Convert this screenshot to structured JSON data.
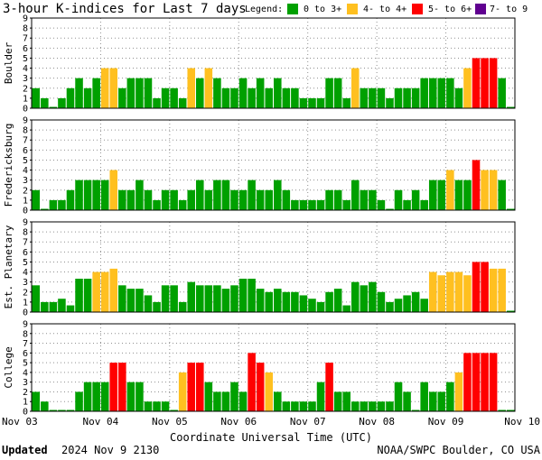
{
  "title": "3-hour K-indices for Last 7 days",
  "legend": {
    "label": "Legend:",
    "items": [
      {
        "label": "0 to 3+",
        "color": "#00a000"
      },
      {
        "label": "4- to 4+",
        "color": "#ffc020"
      },
      {
        "label": "5- to 6+",
        "color": "#ff0000"
      },
      {
        "label": "7- to 9",
        "color": "#600090"
      }
    ]
  },
  "chart_data": {
    "type": "bar",
    "xlabel": "Coordinate Universal Time (UTC)",
    "x_ticks": [
      "Nov 03",
      "Nov 04",
      "Nov 05",
      "Nov 06",
      "Nov 07",
      "Nov 08",
      "Nov 09",
      "Nov 10"
    ],
    "ylim": [
      0,
      9
    ],
    "y_ticks": [
      "0",
      "1",
      "2",
      "3",
      "4",
      "5",
      "6",
      "7",
      "8",
      "9"
    ],
    "panels": [
      {
        "name": "Boulder",
        "values": [
          2,
          1,
          0,
          1,
          2,
          3,
          2,
          3,
          4,
          4,
          2,
          3,
          3,
          3,
          1,
          2,
          2,
          1,
          4,
          3,
          4,
          3,
          2,
          2,
          3,
          2,
          3,
          2,
          3,
          2,
          2,
          1,
          1,
          1,
          3,
          3,
          1,
          4,
          2,
          2,
          2,
          1,
          2,
          2,
          2,
          3,
          3,
          3,
          3,
          2,
          4,
          5,
          5,
          5,
          3,
          0
        ]
      },
      {
        "name": "Fredericksburg",
        "values": [
          2,
          0,
          1,
          1,
          2,
          3,
          3,
          3,
          3,
          4,
          2,
          2,
          3,
          2,
          1,
          2,
          2,
          1,
          2,
          3,
          2,
          3,
          3,
          2,
          2,
          3,
          2,
          2,
          3,
          2,
          1,
          1,
          1,
          1,
          2,
          2,
          1,
          3,
          2,
          2,
          1,
          0,
          2,
          1,
          2,
          1,
          3,
          3,
          4,
          3,
          3,
          5,
          4,
          4,
          3,
          0
        ]
      },
      {
        "name": "Est. Planetary",
        "values": [
          2.67,
          1,
          1,
          1.33,
          0.67,
          3.33,
          3.33,
          4,
          4,
          4.33,
          2.67,
          2.33,
          2.33,
          1.67,
          1,
          2.67,
          2.67,
          1,
          3,
          2.67,
          2.67,
          2.67,
          2.33,
          2.67,
          3.33,
          3.33,
          2.33,
          2,
          2.33,
          2,
          2,
          1.67,
          1.33,
          1,
          2,
          2.33,
          0.67,
          3,
          2.67,
          3,
          2,
          1,
          1.33,
          1.67,
          2,
          1.33,
          4,
          3.67,
          4,
          4,
          3.67,
          5,
          5,
          4.33,
          4.33,
          0
        ]
      },
      {
        "name": "College",
        "values": [
          2,
          1,
          0,
          0,
          0,
          2,
          3,
          3,
          3,
          5,
          5,
          3,
          3,
          1,
          1,
          1,
          0,
          4,
          5,
          5,
          3,
          2,
          2,
          3,
          2,
          6,
          5,
          4,
          2,
          1,
          1,
          1,
          1,
          3,
          5,
          2,
          2,
          1,
          1,
          1,
          1,
          1,
          3,
          2,
          0,
          3,
          2,
          2,
          3,
          4,
          6,
          6,
          6,
          6,
          0,
          0
        ]
      }
    ]
  },
  "footer": {
    "updated_label": "Updated",
    "updated_value": "2024 Nov  9 2130",
    "source": "NOAA/SWPC Boulder, CO USA"
  }
}
